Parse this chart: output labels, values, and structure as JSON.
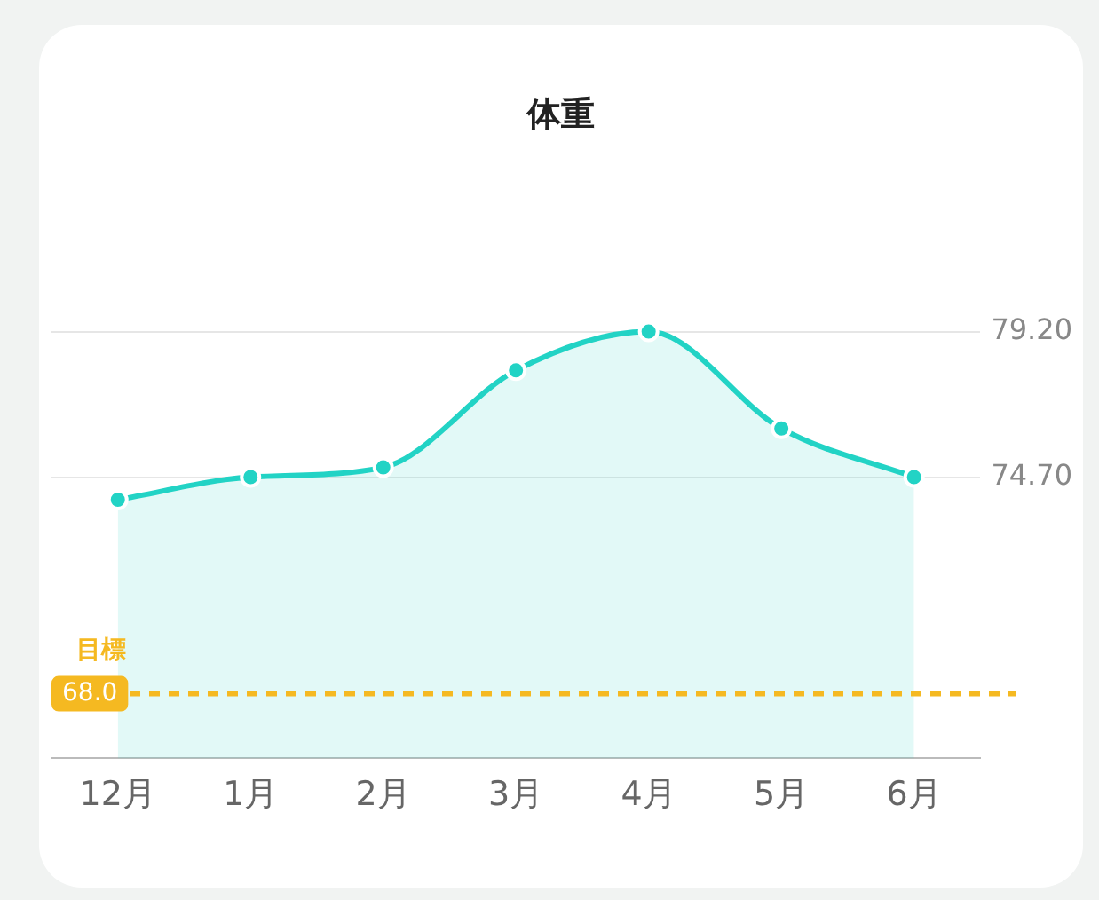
{
  "chart_data": {
    "type": "area",
    "title": "体重",
    "categories": [
      "12月",
      "1月",
      "2月",
      "3月",
      "4月",
      "5月",
      "6月"
    ],
    "series": [
      {
        "color": "#22d3c5",
        "values": [
          74.0,
          74.7,
          75.0,
          78.0,
          79.2,
          76.2,
          74.7
        ]
      }
    ],
    "ylim": [
      66,
      79.2
    ],
    "yticks": [
      {
        "value": 79.2,
        "label": "79.20"
      },
      {
        "value": 74.7,
        "label": "74.70"
      }
    ],
    "grid": "y",
    "legend": false,
    "marker": "circle",
    "line_style": "solid",
    "annotations": [
      {
        "text": "68.0",
        "y": 68
      }
    ],
    "ref_lines": [
      {
        "axis": "y",
        "value": 68,
        "label": "目標",
        "color": "#f5b921",
        "line_style": "dashed"
      }
    ]
  }
}
